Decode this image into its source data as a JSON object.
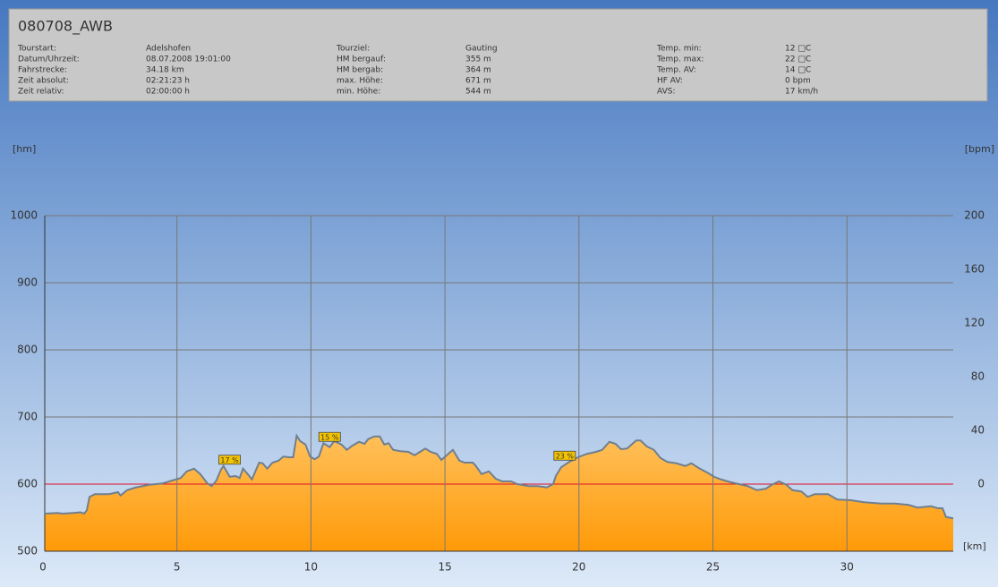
{
  "chart_data": {
    "type": "area",
    "title": "080708_AWB",
    "details": [
      [
        {
          "label": "Tourstart:",
          "value": "Adelshofen"
        },
        {
          "label": "Datum/Uhrzeit:",
          "value": "08.07.2008 19:01:00"
        },
        {
          "label": "Fahrstrecke:",
          "value": "34.18 km"
        },
        {
          "label": "Zeit absolut:",
          "value": "02:21:23 h"
        },
        {
          "label": "Zeit relativ:",
          "value": "02:00:00 h"
        }
      ],
      [
        {
          "label": "Tourziel:",
          "value": "Gauting"
        },
        {
          "label": "HM bergauf:",
          "value": "355 m"
        },
        {
          "label": "HM bergab:",
          "value": "364 m"
        },
        {
          "label": "max. Höhe:",
          "value": "671 m"
        },
        {
          "label": "min. Höhe:",
          "value": "544 m"
        }
      ],
      [
        {
          "label": "Temp. min:",
          "value": "12 □C"
        },
        {
          "label": "Temp. max:",
          "value": "22 □C"
        },
        {
          "label": "Temp. AV:",
          "value": "14 □C"
        },
        {
          "label": "HF AV:",
          "value": "0 bpm"
        },
        {
          "label": "AVS:",
          "value": "17 km/h"
        }
      ]
    ],
    "y_label": "[hm]",
    "y2_label": "[bpm]",
    "x_label": "[km]",
    "color": "#ff9d1a",
    "line_color": "#6f7f90",
    "x": [
      0,
      0.47,
      0.67,
      1.07,
      1.33,
      1.47,
      1.57,
      1.67,
      1.87,
      2.4,
      2.73,
      2.83,
      3.07,
      3.4,
      3.9,
      4.4,
      4.73,
      5.07,
      5.3,
      5.57,
      5.8,
      6.07,
      6.23,
      6.4,
      6.57,
      6.67,
      6.9,
      7.13,
      7.27,
      7.4,
      7.57,
      7.73,
      8.0,
      8.13,
      8.3,
      8.5,
      8.73,
      8.9,
      9.13,
      9.27,
      9.4,
      9.53,
      9.73,
      9.9,
      10.07,
      10.23,
      10.4,
      10.63,
      10.8,
      11.07,
      11.27,
      11.47,
      11.73,
      11.93,
      12.07,
      12.3,
      12.5,
      12.67,
      12.83,
      13.0,
      13.27,
      13.57,
      13.8,
      14.0,
      14.2,
      14.4,
      14.63,
      14.8,
      15.0,
      15.23,
      15.47,
      15.67,
      15.97,
      16.07,
      16.3,
      16.57,
      16.83,
      17.07,
      17.4,
      17.63,
      18.07,
      18.4,
      18.73,
      18.97,
      19.07,
      19.27,
      19.57,
      19.9,
      20.23,
      20.57,
      20.8,
      21.07,
      21.3,
      21.5,
      21.73,
      22.07,
      22.23,
      22.47,
      22.73,
      22.97,
      23.23,
      23.57,
      23.9,
      24.13,
      24.4,
      24.73,
      24.97,
      25.23,
      25.57,
      25.9,
      26.23,
      26.57,
      26.9,
      27.13,
      27.4,
      27.67,
      27.9,
      28.23,
      28.47,
      28.73,
      29.23,
      29.57,
      30.07,
      30.57,
      31.23,
      31.73,
      32.23,
      32.57,
      33.07,
      33.33,
      33.5,
      33.63,
      33.9
    ],
    "values": [
      556,
      557,
      556,
      557,
      558,
      556,
      561,
      581,
      585,
      585,
      588,
      583,
      591,
      595,
      599,
      601,
      605,
      609,
      619,
      623,
      615,
      601,
      597,
      605,
      621,
      627,
      611,
      612,
      609,
      623,
      615,
      607,
      632,
      631,
      623,
      632,
      635,
      641,
      640,
      640,
      672,
      664,
      659,
      641,
      637,
      641,
      661,
      655,
      664,
      659,
      651,
      657,
      663,
      660,
      667,
      671,
      671,
      659,
      661,
      651,
      649,
      648,
      643,
      648,
      653,
      648,
      645,
      636,
      643,
      651,
      635,
      632,
      632,
      628,
      615,
      619,
      608,
      604,
      604,
      600,
      597,
      597,
      595,
      600,
      612,
      625,
      633,
      640,
      645,
      648,
      651,
      663,
      660,
      652,
      653,
      665,
      665,
      656,
      651,
      639,
      633,
      631,
      627,
      631,
      624,
      617,
      611,
      607,
      603,
      600,
      597,
      591,
      593,
      599,
      604,
      599,
      591,
      589,
      581,
      585,
      585,
      577,
      576,
      573,
      571,
      571,
      569,
      565,
      567,
      564,
      564,
      551,
      549
    ],
    "annotations": [
      {
        "text": "17 %",
        "x": 6.9,
        "y": 627
      },
      {
        "text": "15 %",
        "x": 10.63,
        "y": 661
      },
      {
        "text": "23 %",
        "x": 19.4,
        "y": 633
      }
    ],
    "xlim": [
      0,
      34
    ],
    "xticks": [
      0,
      5,
      10,
      15,
      20,
      25,
      30
    ],
    "ylim": [
      500,
      1000
    ],
    "yticks": [
      500,
      600,
      700,
      800,
      900,
      1000
    ],
    "y2lim": [
      -50,
      200
    ],
    "y2ticks": [
      0,
      40,
      80,
      120,
      160,
      200
    ],
    "y2_color": "#e0102a",
    "grid": true
  }
}
